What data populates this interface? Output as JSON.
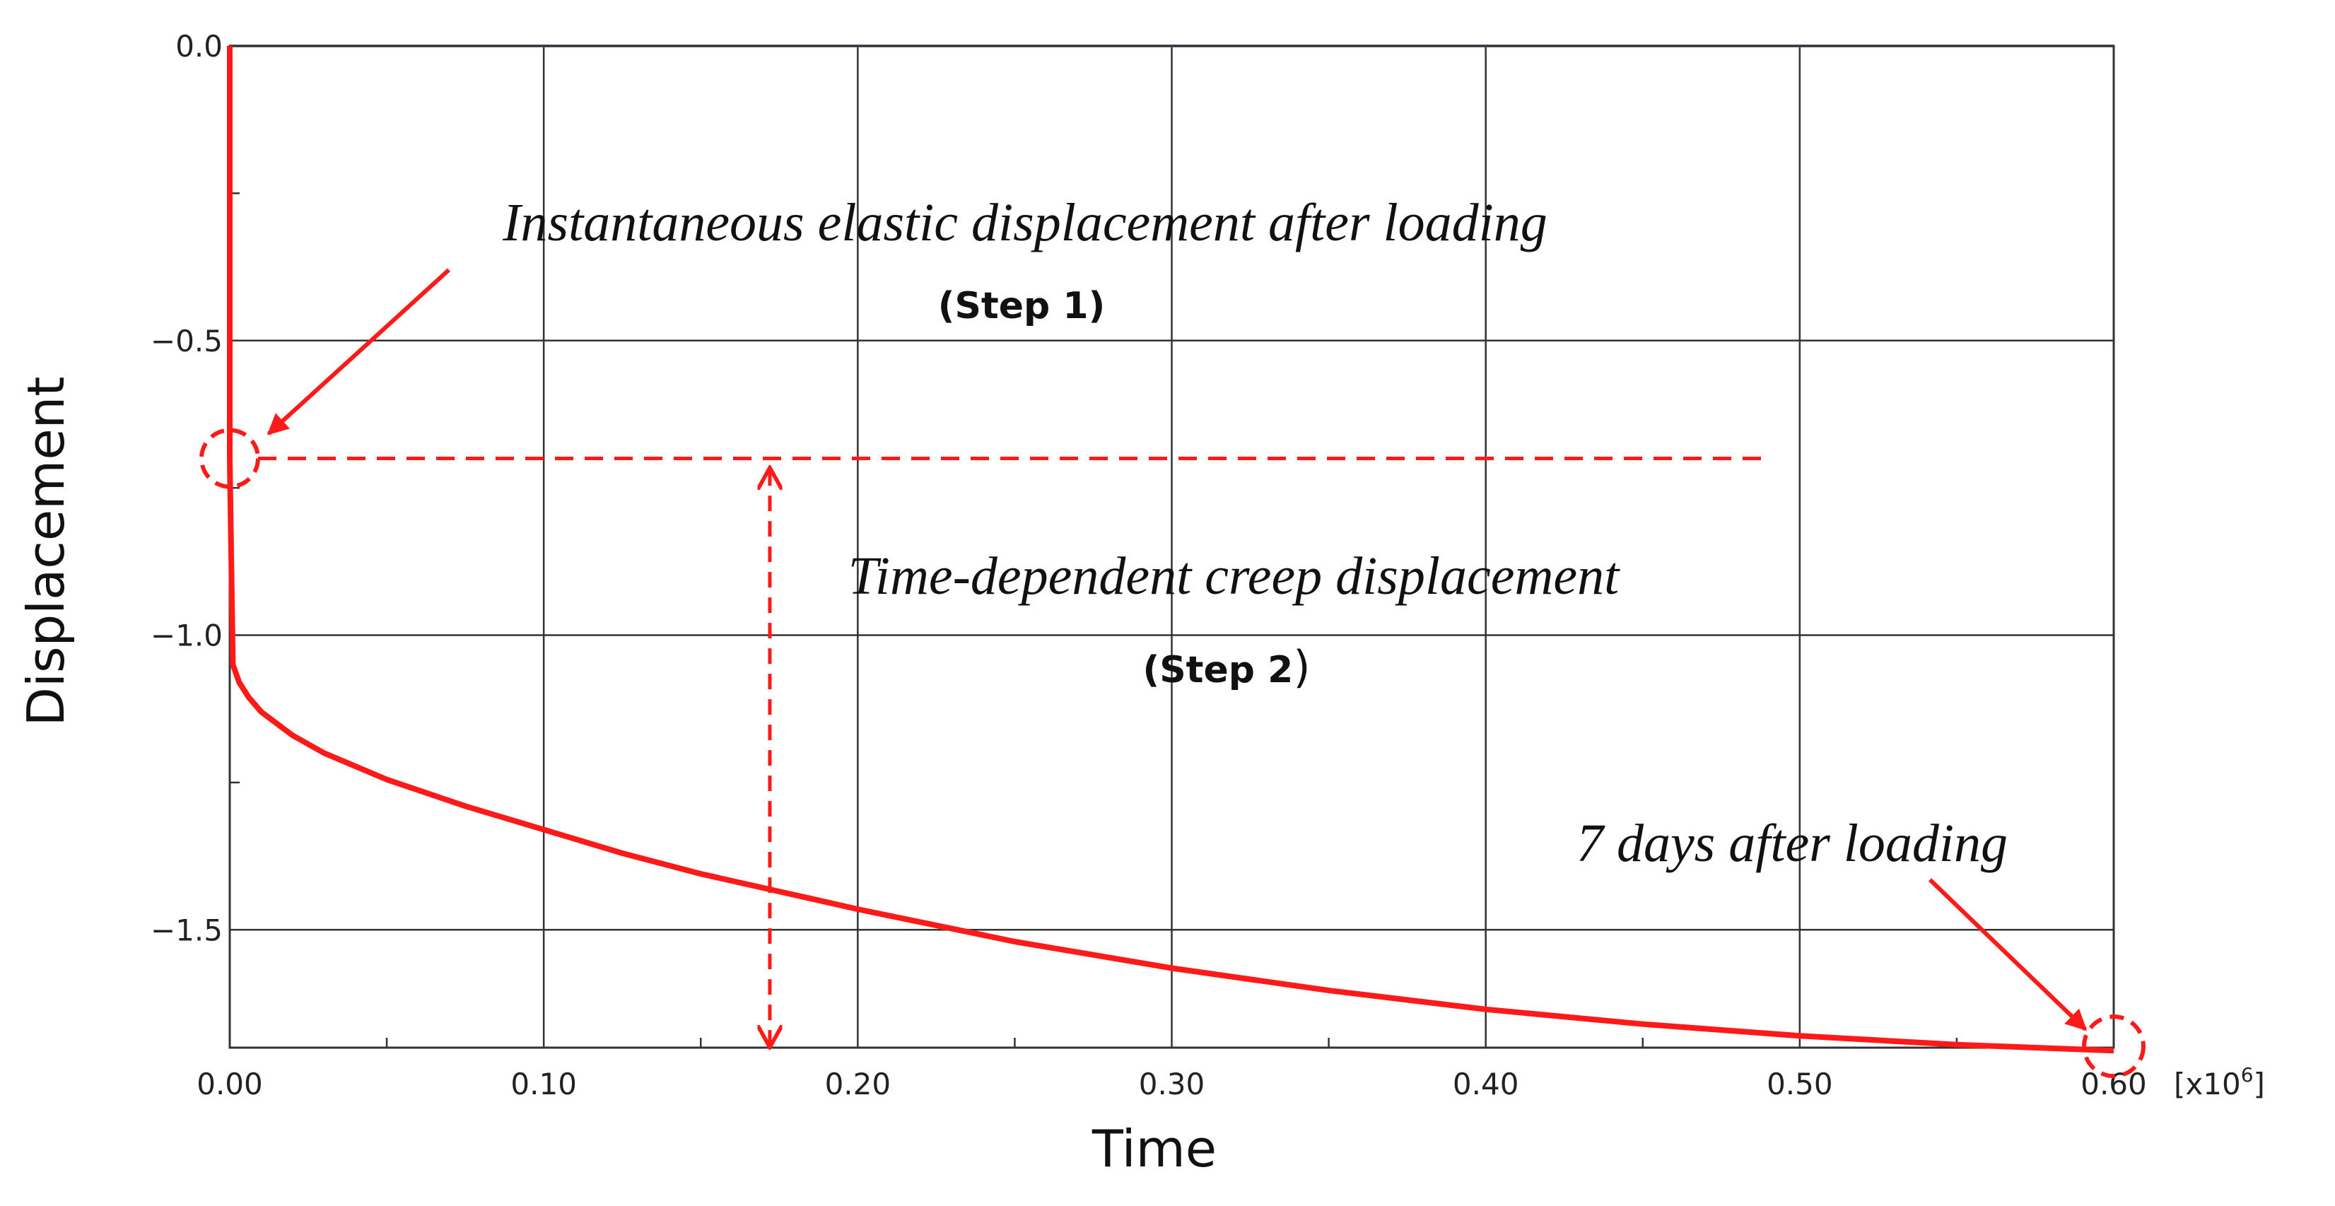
{
  "chart_data": {
    "type": "line",
    "xlabel": "Time",
    "ylabel": "Displacement",
    "x_unit": "[x10",
    "x_unit_exponent": "6",
    "x_unit_close": "]",
    "xlim": [
      0,
      0.6
    ],
    "ylim": [
      -1.7,
      0.0
    ],
    "x_ticks": [
      "0.00",
      "0.10",
      "0.20",
      "0.30",
      "0.40",
      "0.50",
      "0.60"
    ],
    "y_ticks": [
      "0.0",
      "−0.5",
      "−1.0",
      "−1.5"
    ],
    "x_tick_values": [
      0,
      0.1,
      0.2,
      0.3,
      0.4,
      0.5,
      0.6
    ],
    "y_tick_values": [
      0.0,
      -0.5,
      -1.0,
      -1.5
    ],
    "grid": true,
    "series": [
      {
        "name": "Displacement",
        "color": "#ff1a1a",
        "x": [
          0,
          0,
          0.001,
          0.003,
          0.006,
          0.01,
          0.02,
          0.03,
          0.05,
          0.075,
          0.1,
          0.125,
          0.15,
          0.175,
          0.2,
          0.25,
          0.3,
          0.35,
          0.4,
          0.45,
          0.5,
          0.55,
          0.6
        ],
        "y": [
          0.0,
          -0.7,
          -1.05,
          -1.08,
          -1.105,
          -1.13,
          -1.17,
          -1.2,
          -1.245,
          -1.29,
          -1.33,
          -1.37,
          -1.405,
          -1.435,
          -1.465,
          -1.52,
          -1.565,
          -1.603,
          -1.635,
          -1.66,
          -1.68,
          -1.695,
          -1.705
        ]
      }
    ],
    "annotations": {
      "elastic_label": "Instantaneous elastic displacement after loading",
      "step1_label": "(Step 1)",
      "creep_label": "Time-dependent creep displacement",
      "step2_label": "(Step 2",
      "step2_paren": ")",
      "end_label": "7 days after loading",
      "elastic_level": -0.7,
      "creep_arrow_x": 0.172,
      "creep_arrow_y_top": -0.72,
      "creep_arrow_y_bottom": -1.7,
      "dashed_line_x_end": 0.49
    }
  }
}
